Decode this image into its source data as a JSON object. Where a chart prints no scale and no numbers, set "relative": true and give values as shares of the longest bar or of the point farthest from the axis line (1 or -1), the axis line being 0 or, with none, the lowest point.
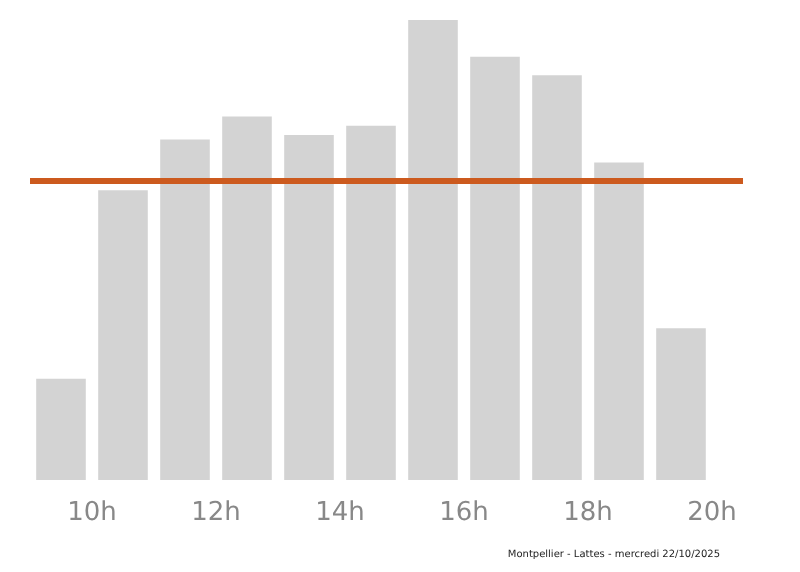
{
  "chart_data": {
    "type": "bar",
    "relative": true,
    "x": [
      9.5,
      10.5,
      11.5,
      12.5,
      13.5,
      14.5,
      15.5,
      16.5,
      17.5,
      18.5,
      19.5
    ],
    "values": [
      0.22,
      0.63,
      0.74,
      0.79,
      0.75,
      0.77,
      1,
      0.92,
      0.88,
      0.69,
      0.33
    ],
    "color": "#d3d3d3",
    "xlim": [
      9,
      20.5
    ],
    "xticks": [
      {
        "value": 10,
        "label": "10h"
      },
      {
        "value": 12,
        "label": "12h"
      },
      {
        "value": 14,
        "label": "14h"
      },
      {
        "value": 16,
        "label": "16h"
      },
      {
        "value": 18,
        "label": "18h"
      },
      {
        "value": 20,
        "label": "20h"
      }
    ],
    "ref_lines": [
      {
        "axis": "y",
        "value": 0.645,
        "label": null,
        "color": "#cc5a1e"
      }
    ],
    "annotations": [
      "Montpellier - Lattes - mercredi 22/10/2025"
    ]
  }
}
